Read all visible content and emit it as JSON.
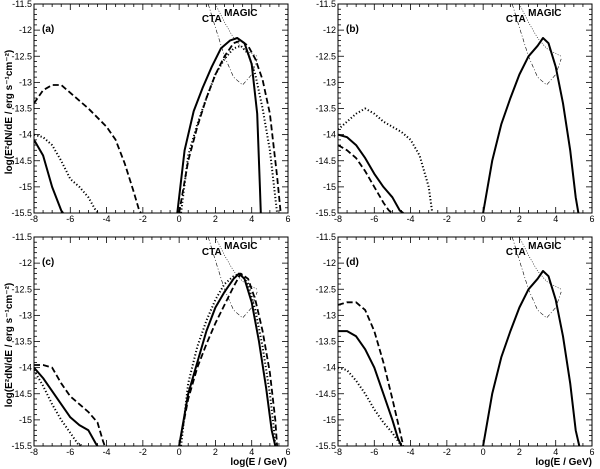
{
  "chart_data": {
    "type": "line",
    "layout": "2x2 grid of panels",
    "xlabel": "log(E / GeV)",
    "ylabel": "log(E²dN/dE / erg s⁻¹cm⁻²)",
    "xlim": [
      -8,
      6
    ],
    "ylim": [
      -15.5,
      -11.5
    ],
    "x_ticks": [
      -8,
      -6,
      -4,
      -2,
      0,
      2,
      4,
      6
    ],
    "y_ticks": [
      -15.5,
      -15,
      -14.5,
      -14,
      -13.5,
      -13,
      -12.5,
      -12,
      -11.5
    ],
    "instrument_labels": [
      "CTA",
      "MAGIC"
    ],
    "sensitivity_curves": [
      {
        "name": "CTA",
        "style": "dash-dot",
        "x": [
          1.6,
          2.0,
          2.5,
          3.0,
          3.5,
          4.0,
          4.3
        ],
        "y": [
          -11.5,
          -11.95,
          -12.5,
          -12.9,
          -13.05,
          -12.85,
          -12.55
        ]
      },
      {
        "name": "MAGIC",
        "style": "dotted",
        "x": [
          2.0,
          2.5,
          3.0,
          3.5,
          4.0,
          4.3
        ],
        "y": [
          -11.5,
          -11.85,
          -12.15,
          -12.35,
          -12.45,
          -12.5
        ]
      }
    ],
    "panels": [
      {
        "label": "(a)",
        "series": [
          {
            "name": "solid",
            "style": "solid",
            "segments": [
              {
                "x": [
                  -8.0,
                  -7.5,
                  -7.0,
                  -6.5,
                  -6.4
                ],
                "y": [
                  -14.1,
                  -14.4,
                  -15.0,
                  -15.45,
                  -15.5
                ]
              },
              {
                "x": [
                  -0.1,
                  0.3,
                  0.8,
                  1.3,
                  1.8,
                  2.3,
                  2.8,
                  3.2,
                  3.6,
                  4.0,
                  4.3,
                  4.45,
                  4.5
                ],
                "y": [
                  -15.5,
                  -14.3,
                  -13.55,
                  -13.1,
                  -12.7,
                  -12.35,
                  -12.2,
                  -12.15,
                  -12.25,
                  -12.65,
                  -13.6,
                  -15.0,
                  -15.5
                ]
              }
            ]
          },
          {
            "name": "dashed",
            "style": "dashed",
            "segments": [
              {
                "x": [
                  -8.0,
                  -7.5,
                  -7.0,
                  -6.5,
                  -6.0,
                  -5.0,
                  -4.0,
                  -3.5,
                  -3.0,
                  -2.5,
                  -2.2,
                  -2.1
                ],
                "y": [
                  -13.4,
                  -13.15,
                  -13.05,
                  -13.05,
                  -13.2,
                  -13.5,
                  -13.85,
                  -14.1,
                  -14.55,
                  -15.1,
                  -15.45,
                  -15.5
                ]
              },
              {
                "x": [
                  0.0,
                  0.5,
                  1.0,
                  1.5,
                  2.0,
                  2.5,
                  3.0,
                  3.4,
                  3.8,
                  4.2,
                  4.6,
                  5.0,
                  5.4,
                  5.6
                ],
                "y": [
                  -15.5,
                  -14.5,
                  -13.85,
                  -13.3,
                  -12.85,
                  -12.5,
                  -12.25,
                  -12.2,
                  -12.3,
                  -12.55,
                  -12.95,
                  -13.6,
                  -14.8,
                  -15.5
                ]
              }
            ]
          },
          {
            "name": "dotted",
            "style": "dotted",
            "segments": [
              {
                "x": [
                  -8.0,
                  -7.5,
                  -7.0,
                  -6.5,
                  -6.0,
                  -5.5,
                  -5.0,
                  -4.6,
                  -4.4
                ],
                "y": [
                  -14.0,
                  -14.05,
                  -14.2,
                  -14.5,
                  -14.85,
                  -15.0,
                  -15.2,
                  -15.45,
                  -15.5
                ]
              },
              {
                "x": [
                  0.1,
                  0.5,
                  1.0,
                  1.5,
                  2.0,
                  2.5,
                  3.0,
                  3.4,
                  3.8,
                  4.2,
                  4.6,
                  5.0,
                  5.3,
                  5.4
                ],
                "y": [
                  -15.5,
                  -14.4,
                  -13.8,
                  -13.3,
                  -12.85,
                  -12.55,
                  -12.35,
                  -12.3,
                  -12.45,
                  -12.85,
                  -13.5,
                  -14.3,
                  -15.2,
                  -15.5
                ]
              }
            ]
          }
        ]
      },
      {
        "label": "(b)",
        "series": [
          {
            "name": "solid",
            "style": "solid",
            "segments": [
              {
                "x": [
                  -8.0,
                  -7.5,
                  -7.0,
                  -6.5,
                  -6.0,
                  -5.5,
                  -5.0,
                  -4.6,
                  -4.4
                ],
                "y": [
                  -14.0,
                  -14.05,
                  -14.2,
                  -14.45,
                  -14.75,
                  -15.0,
                  -15.2,
                  -15.45,
                  -15.5
                ]
              },
              {
                "x": [
                  0.0,
                  0.5,
                  1.0,
                  1.5,
                  2.0,
                  2.5,
                  3.0,
                  3.3,
                  3.6,
                  4.0,
                  4.4,
                  4.8,
                  5.1,
                  5.25
                ],
                "y": [
                  -15.5,
                  -14.5,
                  -13.8,
                  -13.3,
                  -12.85,
                  -12.5,
                  -12.3,
                  -12.15,
                  -12.25,
                  -12.7,
                  -13.4,
                  -14.3,
                  -15.2,
                  -15.5
                ]
              }
            ]
          },
          {
            "name": "dashed",
            "style": "dashed",
            "segments": [
              {
                "x": [
                  -8.0,
                  -7.5,
                  -7.0,
                  -6.5,
                  -6.0,
                  -5.5,
                  -5.2,
                  -5.0
                ],
                "y": [
                  -14.2,
                  -14.3,
                  -14.45,
                  -14.7,
                  -15.0,
                  -15.3,
                  -15.45,
                  -15.5
                ]
              }
            ]
          },
          {
            "name": "dotted",
            "style": "dotted",
            "segments": [
              {
                "x": [
                  -8.0,
                  -7.5,
                  -7.0,
                  -6.5,
                  -6.0,
                  -5.5,
                  -5.0,
                  -4.5,
                  -4.0,
                  -3.5,
                  -3.0,
                  -2.8
                ],
                "y": [
                  -13.9,
                  -13.75,
                  -13.6,
                  -13.5,
                  -13.6,
                  -13.75,
                  -13.85,
                  -13.95,
                  -14.1,
                  -14.4,
                  -15.0,
                  -15.5
                ]
              }
            ]
          }
        ]
      },
      {
        "label": "(c)",
        "series": [
          {
            "name": "solid",
            "style": "solid",
            "segments": [
              {
                "x": [
                  -8.0,
                  -7.5,
                  -7.0,
                  -6.5,
                  -6.0,
                  -5.5,
                  -5.0,
                  -4.6,
                  -4.5
                ],
                "y": [
                  -14.0,
                  -14.2,
                  -14.45,
                  -14.7,
                  -14.95,
                  -15.1,
                  -15.2,
                  -15.45,
                  -15.5
                ]
              },
              {
                "x": [
                  0.0,
                  0.5,
                  1.0,
                  1.5,
                  2.0,
                  2.5,
                  3.0,
                  3.3,
                  3.6,
                  4.0,
                  4.4,
                  4.8,
                  5.1,
                  5.3
                ],
                "y": [
                  -15.5,
                  -14.5,
                  -13.9,
                  -13.3,
                  -12.85,
                  -12.55,
                  -12.3,
                  -12.2,
                  -12.3,
                  -12.75,
                  -13.5,
                  -14.4,
                  -15.2,
                  -15.5
                ]
              }
            ]
          },
          {
            "name": "dashed",
            "style": "dashed",
            "segments": [
              {
                "x": [
                  -8.0,
                  -7.5,
                  -7.0,
                  -6.5,
                  -6.0,
                  -5.5,
                  -5.0,
                  -4.5,
                  -4.2,
                  -4.1
                ],
                "y": [
                  -13.95,
                  -13.95,
                  -14.0,
                  -14.3,
                  -14.55,
                  -14.7,
                  -14.85,
                  -15.05,
                  -15.4,
                  -15.5
                ]
              },
              {
                "x": [
                  0.0,
                  0.5,
                  1.0,
                  1.5,
                  2.0,
                  2.5,
                  3.0,
                  3.4,
                  3.8,
                  4.2,
                  4.6,
                  5.0,
                  5.3,
                  5.4
                ],
                "y": [
                  -15.5,
                  -14.6,
                  -14.0,
                  -13.55,
                  -13.15,
                  -12.8,
                  -12.45,
                  -12.2,
                  -12.3,
                  -12.7,
                  -13.3,
                  -14.1,
                  -15.0,
                  -15.5
                ]
              }
            ]
          },
          {
            "name": "dotted",
            "style": "dotted",
            "segments": [
              {
                "x": [
                  -8.0,
                  -7.5,
                  -7.0,
                  -6.5,
                  -6.0,
                  -5.6,
                  -5.3
                ],
                "y": [
                  -14.05,
                  -14.35,
                  -14.7,
                  -15.0,
                  -15.25,
                  -15.45,
                  -15.5
                ]
              },
              {
                "x": [
                  0.1,
                  0.5,
                  1.0,
                  1.5,
                  2.0,
                  2.5,
                  3.0,
                  3.4,
                  3.8,
                  4.2,
                  4.6,
                  5.0,
                  5.2,
                  5.3
                ],
                "y": [
                  -15.5,
                  -14.3,
                  -13.6,
                  -13.1,
                  -12.7,
                  -12.4,
                  -12.25,
                  -12.2,
                  -12.4,
                  -12.9,
                  -13.6,
                  -14.5,
                  -15.1,
                  -15.5
                ]
              }
            ]
          }
        ]
      },
      {
        "label": "(d)",
        "series": [
          {
            "name": "solid",
            "style": "solid",
            "segments": [
              {
                "x": [
                  -8.0,
                  -7.5,
                  -7.0,
                  -6.5,
                  -6.0,
                  -5.5,
                  -5.0,
                  -4.7,
                  -4.5
                ],
                "y": [
                  -13.3,
                  -13.3,
                  -13.4,
                  -13.65,
                  -14.0,
                  -14.5,
                  -15.0,
                  -15.35,
                  -15.5
                ]
              },
              {
                "x": [
                  0.0,
                  0.5,
                  1.0,
                  1.5,
                  2.0,
                  2.5,
                  3.0,
                  3.3,
                  3.6,
                  4.0,
                  4.4,
                  4.8,
                  5.1,
                  5.3
                ],
                "y": [
                  -15.5,
                  -14.5,
                  -13.8,
                  -13.3,
                  -12.85,
                  -12.5,
                  -12.3,
                  -12.15,
                  -12.25,
                  -12.7,
                  -13.4,
                  -14.3,
                  -15.2,
                  -15.5
                ]
              }
            ]
          },
          {
            "name": "dashed",
            "style": "dashed",
            "segments": [
              {
                "x": [
                  -8.0,
                  -7.5,
                  -7.0,
                  -6.5,
                  -6.0,
                  -5.5,
                  -5.0,
                  -4.6,
                  -4.4
                ],
                "y": [
                  -12.8,
                  -12.75,
                  -12.75,
                  -12.9,
                  -13.3,
                  -13.9,
                  -14.6,
                  -15.2,
                  -15.5
                ]
              }
            ]
          },
          {
            "name": "dotted",
            "style": "dotted",
            "segments": [
              {
                "x": [
                  -8.0,
                  -7.5,
                  -7.0,
                  -6.5,
                  -6.0,
                  -5.5,
                  -5.0,
                  -4.6,
                  -4.5
                ],
                "y": [
                  -14.0,
                  -14.05,
                  -14.25,
                  -14.5,
                  -14.8,
                  -15.05,
                  -15.25,
                  -15.45,
                  -15.5
                ]
              }
            ]
          }
        ]
      }
    ]
  }
}
